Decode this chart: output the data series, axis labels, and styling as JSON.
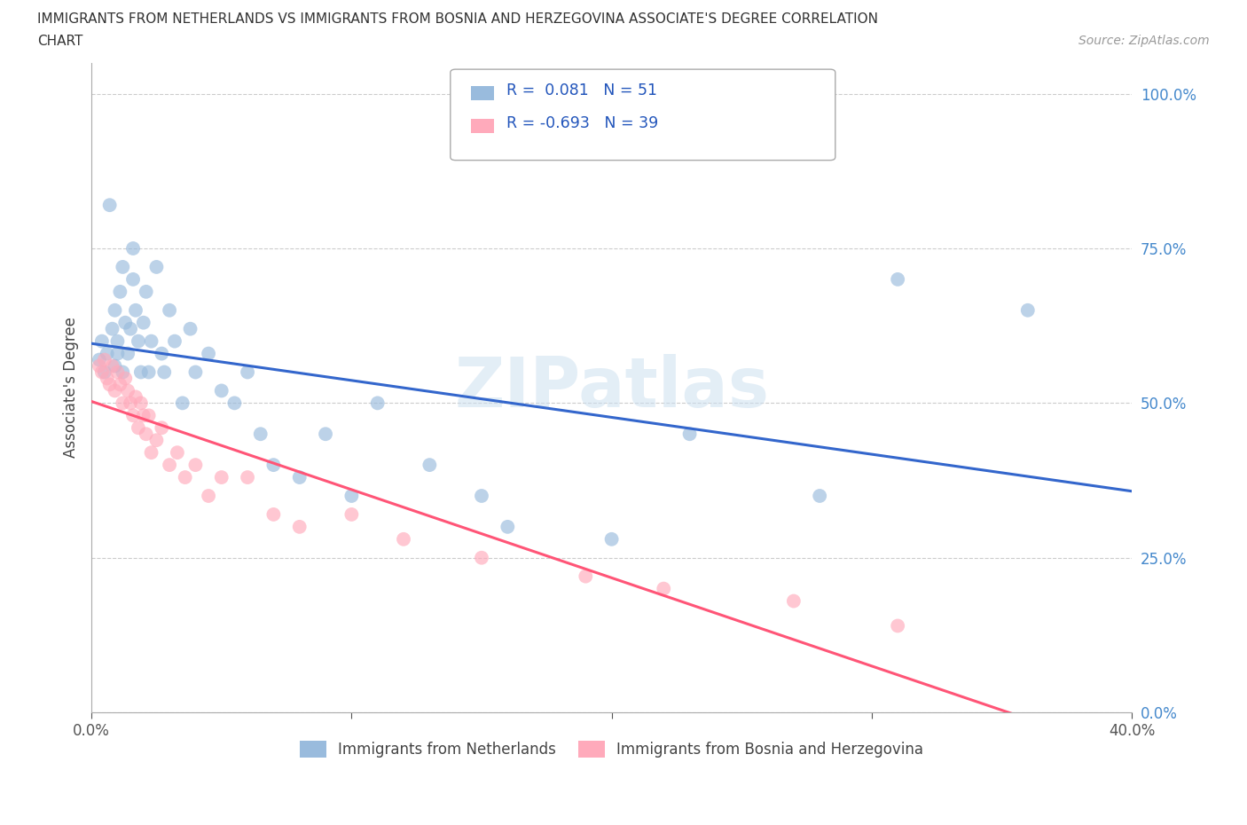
{
  "title_line1": "IMMIGRANTS FROM NETHERLANDS VS IMMIGRANTS FROM BOSNIA AND HERZEGOVINA ASSOCIATE'S DEGREE CORRELATION",
  "title_line2": "CHART",
  "source_text": "Source: ZipAtlas.com",
  "ylabel": "Associate's Degree",
  "xmin": 0.0,
  "xmax": 0.4,
  "ymin": 0.0,
  "ymax": 1.05,
  "ytick_labels": [
    "0.0%",
    "25.0%",
    "50.0%",
    "75.0%",
    "100.0%"
  ],
  "ytick_values": [
    0.0,
    0.25,
    0.5,
    0.75,
    1.0
  ],
  "xtick_values": [
    0.0,
    0.1,
    0.2,
    0.3,
    0.4
  ],
  "xtick_labels": [
    "0.0%",
    "",
    "",
    "",
    "40.0%"
  ],
  "blue_R": 0.081,
  "blue_N": 51,
  "pink_R": -0.693,
  "pink_N": 39,
  "blue_color": "#99BBDD",
  "pink_color": "#FFAABB",
  "blue_line_color": "#3366CC",
  "pink_line_color": "#FF5577",
  "watermark": "ZIPatlas",
  "blue_scatter_x": [
    0.003,
    0.004,
    0.005,
    0.006,
    0.007,
    0.008,
    0.009,
    0.009,
    0.01,
    0.01,
    0.011,
    0.012,
    0.012,
    0.013,
    0.014,
    0.015,
    0.016,
    0.016,
    0.017,
    0.018,
    0.019,
    0.02,
    0.021,
    0.022,
    0.023,
    0.025,
    0.027,
    0.028,
    0.03,
    0.032,
    0.035,
    0.038,
    0.04,
    0.045,
    0.05,
    0.055,
    0.06,
    0.065,
    0.07,
    0.08,
    0.09,
    0.1,
    0.11,
    0.13,
    0.15,
    0.16,
    0.2,
    0.23,
    0.28,
    0.31,
    0.36
  ],
  "blue_scatter_y": [
    0.57,
    0.6,
    0.55,
    0.58,
    0.82,
    0.62,
    0.56,
    0.65,
    0.6,
    0.58,
    0.68,
    0.55,
    0.72,
    0.63,
    0.58,
    0.62,
    0.75,
    0.7,
    0.65,
    0.6,
    0.55,
    0.63,
    0.68,
    0.55,
    0.6,
    0.72,
    0.58,
    0.55,
    0.65,
    0.6,
    0.5,
    0.62,
    0.55,
    0.58,
    0.52,
    0.5,
    0.55,
    0.45,
    0.4,
    0.38,
    0.45,
    0.35,
    0.5,
    0.4,
    0.35,
    0.3,
    0.28,
    0.45,
    0.35,
    0.7,
    0.65
  ],
  "pink_scatter_x": [
    0.003,
    0.004,
    0.005,
    0.006,
    0.007,
    0.008,
    0.009,
    0.01,
    0.011,
    0.012,
    0.013,
    0.014,
    0.015,
    0.016,
    0.017,
    0.018,
    0.019,
    0.02,
    0.021,
    0.022,
    0.023,
    0.025,
    0.027,
    0.03,
    0.033,
    0.036,
    0.04,
    0.045,
    0.05,
    0.06,
    0.07,
    0.08,
    0.1,
    0.12,
    0.15,
    0.19,
    0.22,
    0.27,
    0.31
  ],
  "pink_scatter_y": [
    0.56,
    0.55,
    0.57,
    0.54,
    0.53,
    0.56,
    0.52,
    0.55,
    0.53,
    0.5,
    0.54,
    0.52,
    0.5,
    0.48,
    0.51,
    0.46,
    0.5,
    0.48,
    0.45,
    0.48,
    0.42,
    0.44,
    0.46,
    0.4,
    0.42,
    0.38,
    0.4,
    0.35,
    0.38,
    0.38,
    0.32,
    0.3,
    0.32,
    0.28,
    0.25,
    0.22,
    0.2,
    0.18,
    0.14
  ]
}
